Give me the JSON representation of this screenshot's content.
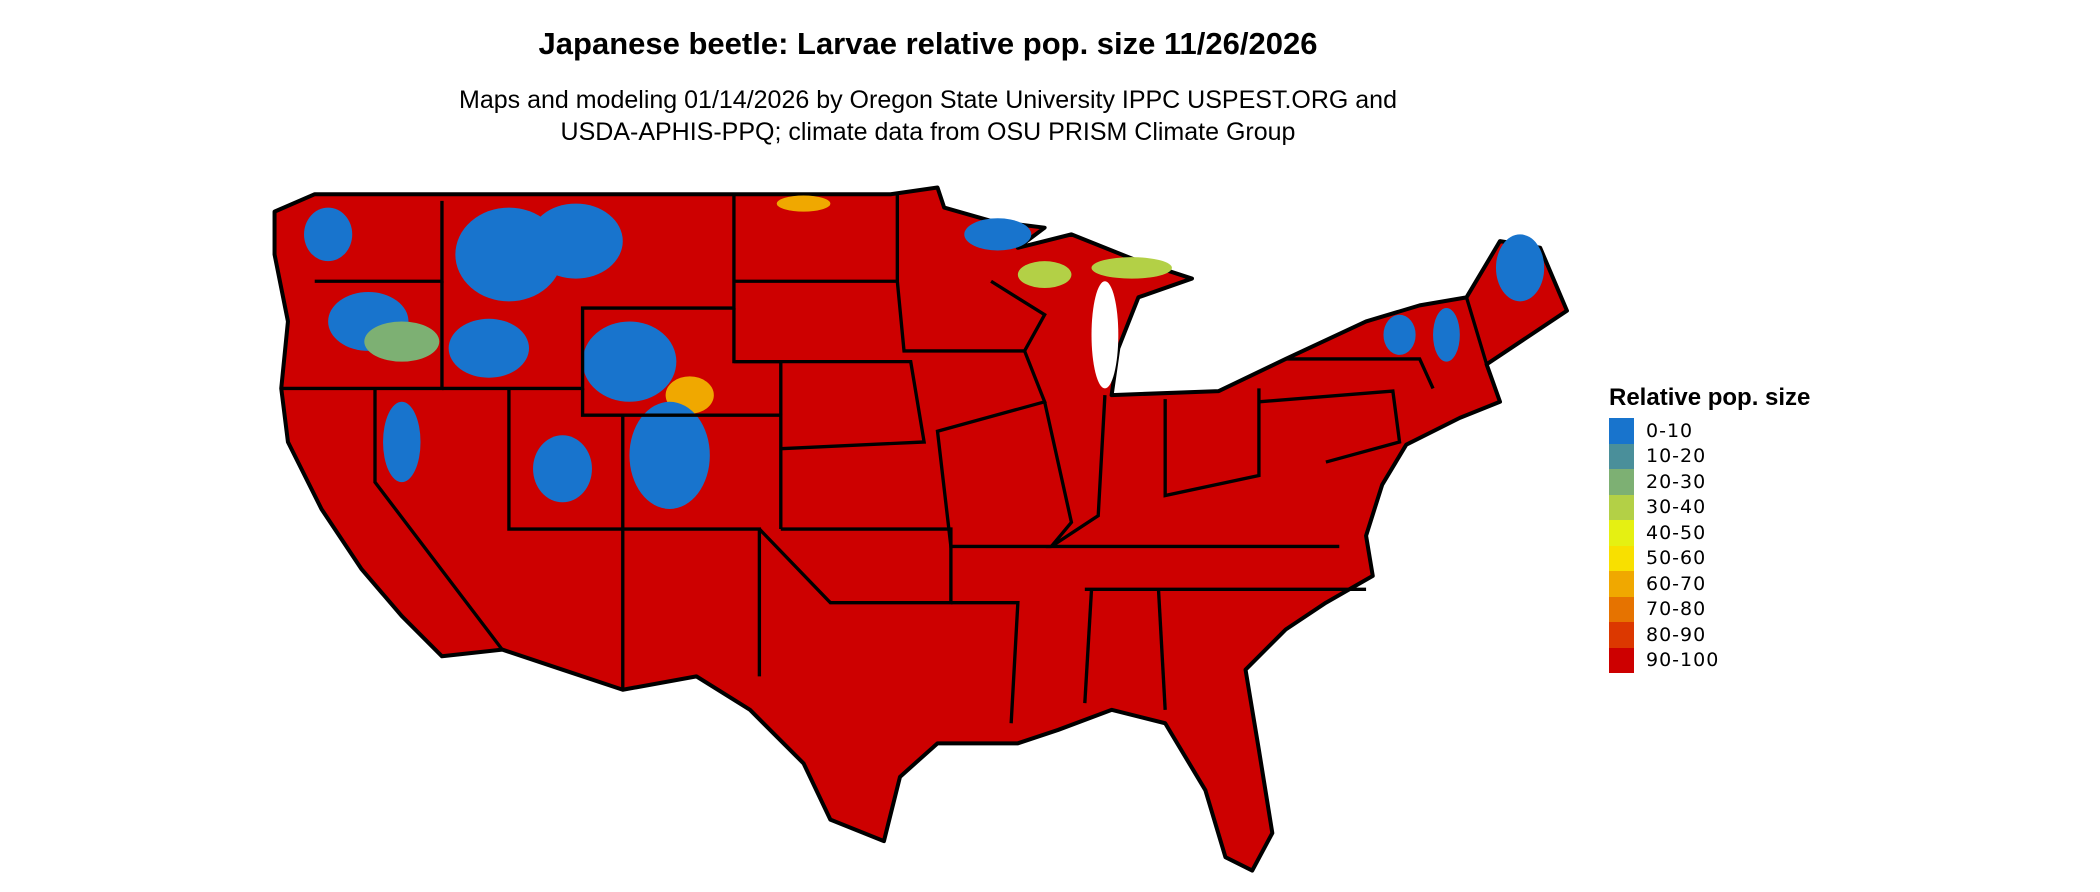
{
  "title": "Japanese beetle: Larvae relative pop. size 11/26/2026",
  "subtitle_line1": "Maps and modeling 01/14/2026 by Oregon State University IPPC USPEST.ORG and",
  "subtitle_line2": "USDA-APHIS-PPQ; climate data from OSU PRISM Climate Group",
  "legend": {
    "title": "Relative pop. size",
    "items": [
      {
        "label": "0-10",
        "color": "#1874CD"
      },
      {
        "label": "10-20",
        "color": "#4A8F9A"
      },
      {
        "label": "20-30",
        "color": "#7DB073"
      },
      {
        "label": "30-40",
        "color": "#B3D046"
      },
      {
        "label": "40-50",
        "color": "#E5F012"
      },
      {
        "label": "50-60",
        "color": "#F8E000"
      },
      {
        "label": "60-70",
        "color": "#F0A800"
      },
      {
        "label": "70-80",
        "color": "#E67300"
      },
      {
        "label": "80-90",
        "color": "#DC3800"
      },
      {
        "label": "90-100",
        "color": "#CD0000"
      }
    ]
  },
  "map": {
    "region": "Contiguous United States",
    "dominant_class": "90-100",
    "low_classes_region": "Mountain West, northern Great Lakes, northern New England"
  }
}
